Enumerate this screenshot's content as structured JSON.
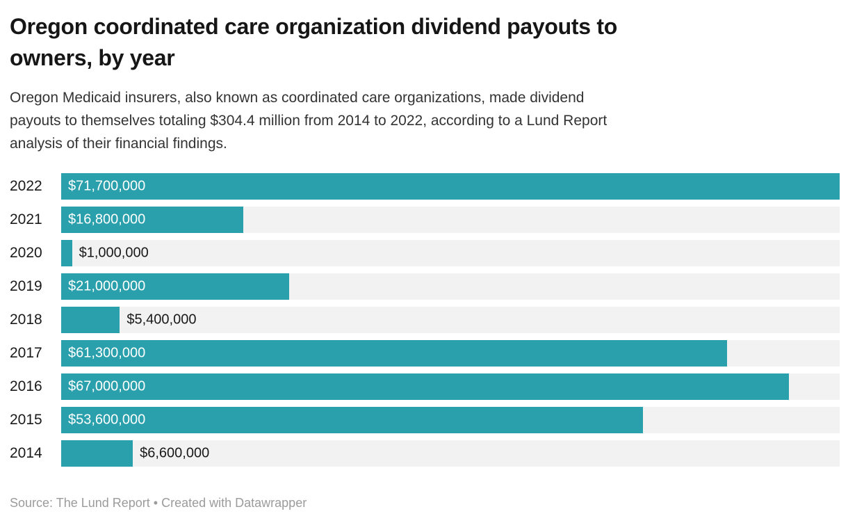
{
  "header": {
    "title": "Oregon coordinated care organization dividend payouts to\nowners, by year",
    "description": "Oregon Medicaid insurers, also known as coordinated care organizations, made dividend\npayouts to themselves totaling $304.4 million from 2014 to 2022, according to a Lund Report\nanalysis of their financial findings."
  },
  "chart_data": {
    "type": "bar",
    "orientation": "horizontal",
    "title": "Oregon coordinated care organization dividend payouts to owners, by year",
    "categories": [
      "2022",
      "2021",
      "2020",
      "2019",
      "2018",
      "2017",
      "2016",
      "2015",
      "2014"
    ],
    "values": [
      71700000,
      16800000,
      1000000,
      21000000,
      5400000,
      61300000,
      67000000,
      53600000,
      6600000
    ],
    "value_labels": [
      "$71,700,000",
      "$16,800,000",
      "$1,000,000",
      "$21,000,000",
      "$5,400,000",
      "$61,300,000",
      "$67,000,000",
      "$53,600,000",
      "$6,600,000"
    ],
    "max_value": 71700000,
    "xlabel": "",
    "ylabel": "",
    "grid": false,
    "legend": false,
    "bar_color": "#2aa0ac",
    "track_color": "#f2f2f2"
  },
  "footer": {
    "source_text": "Source: The Lund Report • Created with Datawrapper"
  }
}
